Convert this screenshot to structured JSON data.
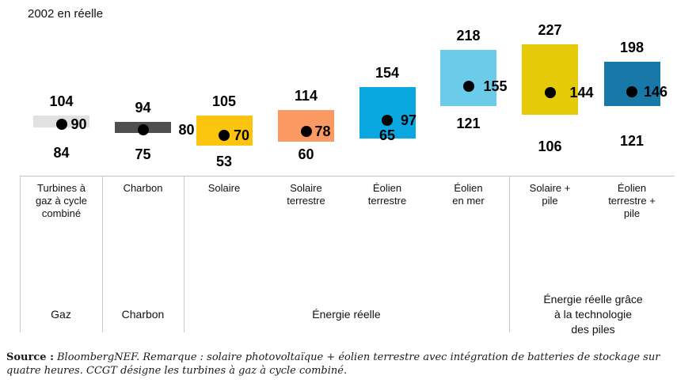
{
  "title": "2002 en réelle",
  "chart_data": {
    "type": "range-bar",
    "title": "2002 en réelle",
    "grid": false,
    "legend": false,
    "ylim": [
      0,
      250
    ],
    "columns": [
      {
        "label": "Turbines à\ngaz à cycle\ncombiné",
        "group": "Gaz",
        "min": 84,
        "max": 104,
        "point": 90,
        "color": "#E1E1E1"
      },
      {
        "label": "Charbon",
        "group": "Charbon",
        "min": 75,
        "max": 94,
        "point": 80,
        "color": "#4F4F4F"
      },
      {
        "label": "Solaire",
        "group": "Énergie réelle",
        "min": 53,
        "max": 105,
        "point": 70,
        "color": "#FCC40F"
      },
      {
        "label": "Solaire\nterrestre",
        "group": "Énergie réelle",
        "min": 60,
        "max": 114,
        "point": 78,
        "color": "#FA9A62"
      },
      {
        "label": "Éolien\nterrestre",
        "group": "Énergie réelle",
        "min": 65,
        "max": 154,
        "point": 97,
        "color": "#09A8E0"
      },
      {
        "label": "Éolien\nen mer",
        "group": "Énergie réelle",
        "min": 121,
        "max": 218,
        "point": 155,
        "color": "#6CCBE8"
      },
      {
        "label": "Solaire +\npile",
        "group": "Énergie réelle grâce à la technologie des piles",
        "min": 106,
        "max": 227,
        "point": 144,
        "color": "#E5CB07"
      },
      {
        "label": "Éolien\nterrestre +\npile",
        "group": "Énergie réelle grâce à la technologie des piles",
        "min": 121,
        "max": 198,
        "point": 146,
        "color": "#1879A8"
      }
    ],
    "groups": [
      {
        "label": "Gaz"
      },
      {
        "label": "Charbon"
      },
      {
        "label": "Énergie réelle"
      },
      {
        "label": "Énergie réelle grâce\nà la technologie\ndes piles"
      }
    ]
  },
  "footer": {
    "source_label": "Source :",
    "note": " BloombergNEF. Remarque : solaire photovoltaïque + éolien terrestre avec intégration de batteries de stockage sur quatre heures. CCGT désigne les turbines à gaz à cycle combiné."
  }
}
